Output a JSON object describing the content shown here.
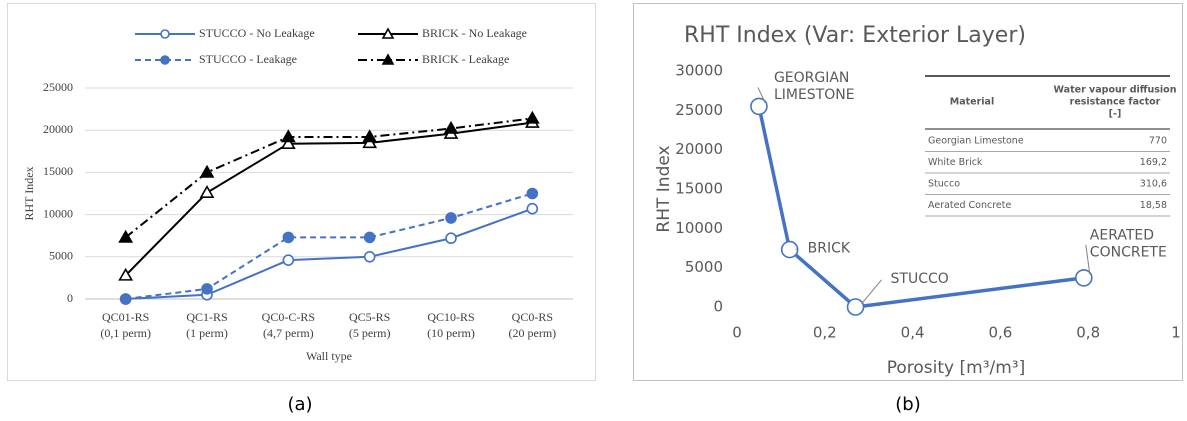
{
  "chart_data": [
    {
      "type": "line",
      "y_label": "RHT Index",
      "x_label": "Wall type",
      "categories": [
        [
          "QC01-RS",
          "(0,1 perm)"
        ],
        [
          "QC1-RS",
          "(1 perm)"
        ],
        [
          "QC0-C-RS",
          "(4,7 perm)"
        ],
        [
          "QC5-RS",
          "(5 perm)"
        ],
        [
          "QC10-RS",
          "(10 perm)"
        ],
        [
          "QC0-RS",
          "(20 perm)"
        ]
      ],
      "series": [
        {
          "name": "STUCCO - No Leakage",
          "color": "#4472c4",
          "linestyle": "solid",
          "marker": "circle",
          "filled": false,
          "values": [
            0,
            500,
            4600,
            5000,
            7200,
            10700
          ]
        },
        {
          "name": "BRICK - No Leakage",
          "color": "#000000",
          "linestyle": "solid",
          "marker": "triangle",
          "filled": false,
          "values": [
            2800,
            12600,
            18400,
            18500,
            19600,
            20900
          ]
        },
        {
          "name": "STUCCO - Leakage",
          "color": "#4472c4",
          "linestyle": "dashed",
          "marker": "circle",
          "filled": true,
          "values": [
            0,
            1200,
            7300,
            7300,
            9600,
            12500
          ]
        },
        {
          "name": "BRICK - Leakage",
          "color": "#000000",
          "linestyle": "dashdot",
          "marker": "triangle",
          "filled": true,
          "values": [
            7300,
            15000,
            19200,
            19200,
            20200,
            21400
          ]
        }
      ],
      "ylim": [
        0,
        25000
      ],
      "yticks": [
        0,
        5000,
        10000,
        15000,
        20000,
        25000
      ],
      "grid": true
    },
    {
      "type": "line",
      "title": "RHT Index (Var: Exterior Layer)",
      "y_label": "RHT Index",
      "x_label": "Porosity [m³/m³]",
      "x": [
        0.05,
        0.12,
        0.27,
        0.79
      ],
      "y": [
        25500,
        7300,
        0,
        3700
      ],
      "point_labels": [
        [
          "GEORGIAN",
          "LIMESTONE"
        ],
        [
          "BRICK"
        ],
        [
          "STUCCO"
        ],
        [
          "AERATED",
          "CONCRETE"
        ]
      ],
      "color": "#4472c4",
      "marker": "circle",
      "filled": false,
      "xlim": [
        0,
        1
      ],
      "xticks": [
        0,
        {
          "value": 0.2,
          "label": "0,2"
        },
        {
          "value": 0.4,
          "label": "0,4"
        },
        {
          "value": 0.6,
          "label": "0,6"
        },
        {
          "value": 0.8,
          "label": "0,8"
        },
        1
      ],
      "ylim": [
        0,
        30000
      ],
      "yticks": [
        0,
        5000,
        10000,
        15000,
        20000,
        25000,
        30000
      ],
      "grid": false,
      "table": {
        "columns": [
          [
            "Material"
          ],
          [
            "Water vapour diffusion",
            "resistance factor",
            "[-]"
          ]
        ],
        "rows": [
          [
            "Georgian Limestone",
            "770"
          ],
          [
            "White Brick",
            "169,2"
          ],
          [
            "Stucco",
            "310,6"
          ],
          [
            "Aerated Concrete",
            "18,58"
          ]
        ]
      }
    }
  ],
  "captions": [
    "(a)",
    "(b)"
  ]
}
